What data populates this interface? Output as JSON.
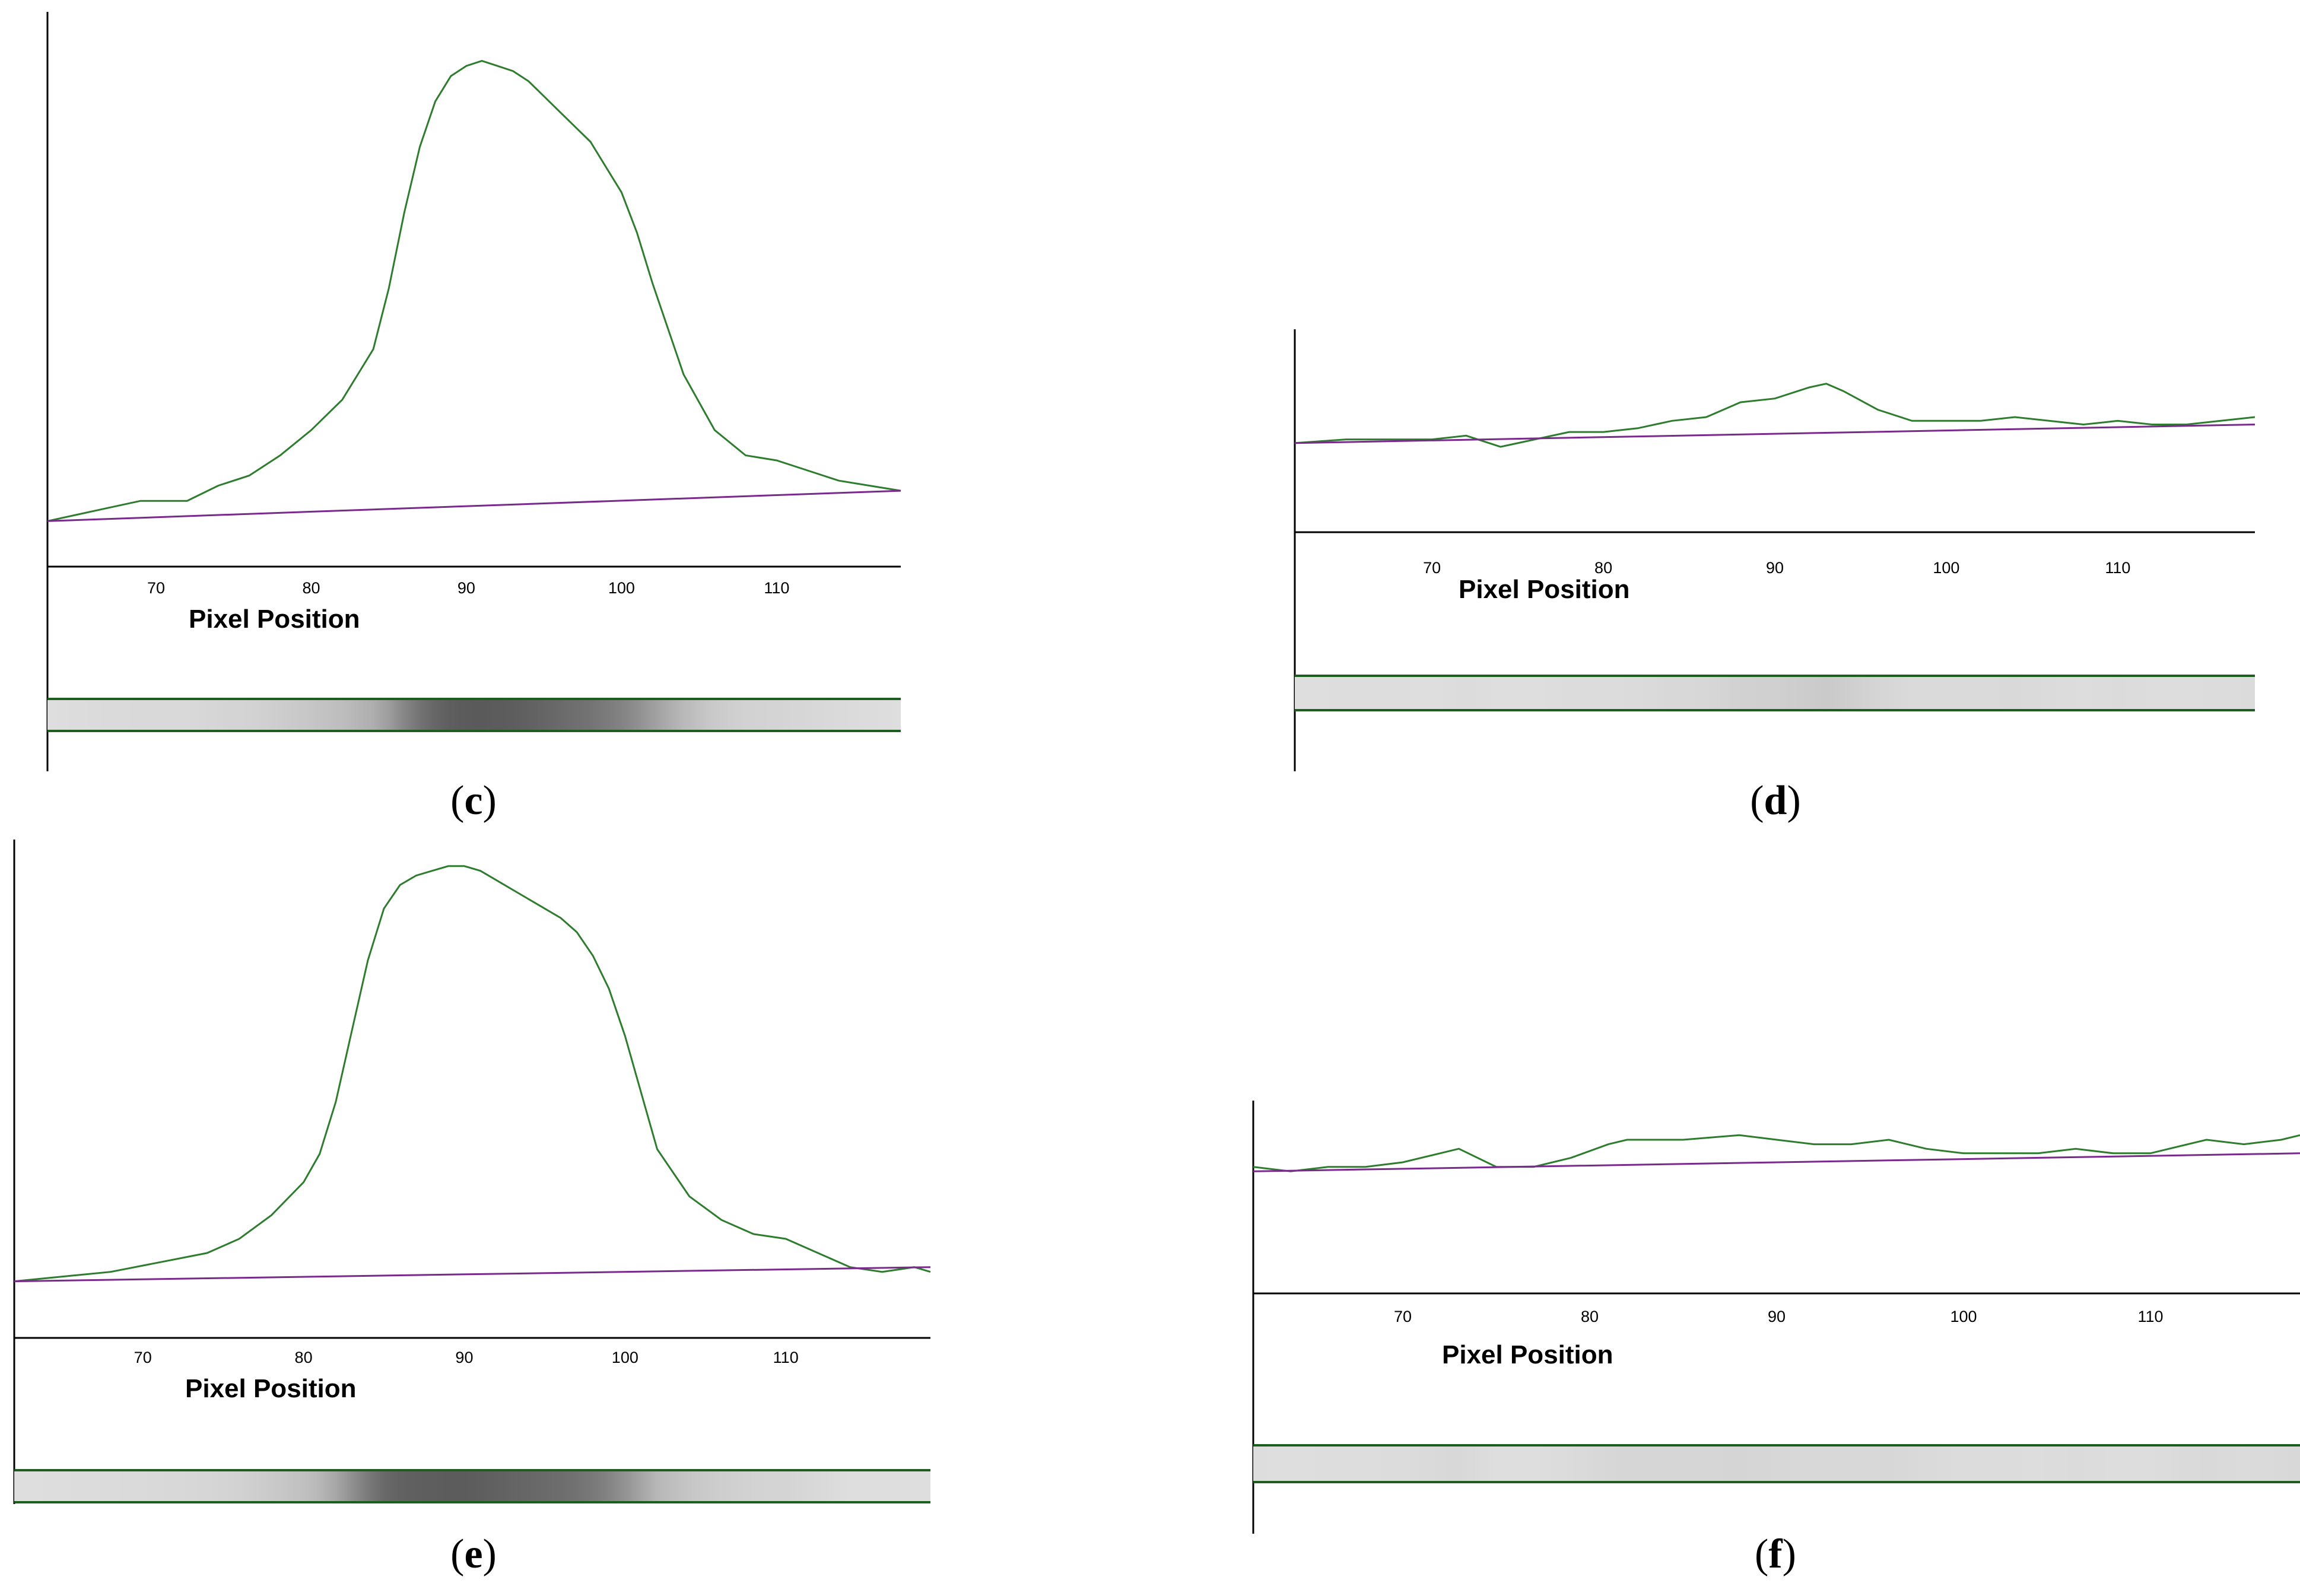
{
  "chart_data": [
    {
      "type": "line",
      "panel_label": "c",
      "xlabel": "Pixel Position",
      "xlim": [
        63,
        118
      ],
      "xticks": [
        70,
        80,
        90,
        100,
        110
      ],
      "ylim": [
        0,
        1.05
      ],
      "peak_visible": true,
      "colors": {
        "profile": "#2e7d2e",
        "baseline": "#7a2a8c",
        "strip_border": "#1f5c1f"
      },
      "series": [
        {
          "role": "profile",
          "x": [
            63,
            66,
            69,
            72,
            74,
            76,
            78,
            80,
            82,
            84,
            85,
            86,
            87,
            88,
            89,
            90,
            91,
            92,
            93,
            94,
            95,
            96,
            97,
            98,
            99,
            100,
            101,
            102,
            104,
            106,
            108,
            110,
            112,
            114,
            116,
            118
          ],
          "y": [
            0.09,
            0.11,
            0.13,
            0.13,
            0.16,
            0.18,
            0.22,
            0.27,
            0.33,
            0.43,
            0.55,
            0.7,
            0.83,
            0.92,
            0.97,
            0.99,
            1.0,
            0.99,
            0.98,
            0.96,
            0.93,
            0.9,
            0.87,
            0.84,
            0.79,
            0.74,
            0.66,
            0.56,
            0.38,
            0.27,
            0.22,
            0.21,
            0.19,
            0.17,
            0.16,
            0.15
          ]
        },
        {
          "role": "baseline",
          "x": [
            63,
            118
          ],
          "y": [
            0.09,
            0.15
          ]
        }
      ]
    },
    {
      "type": "line",
      "panel_label": "d",
      "xlabel": "Pixel Position",
      "xlim": [
        62,
        118
      ],
      "xticks": [
        70,
        80,
        90,
        100,
        110
      ],
      "ylim": [
        0,
        1.05
      ],
      "peak_visible": false,
      "colors": {
        "profile": "#2e7d2e",
        "baseline": "#7a2a8c",
        "strip_border": "#1f5c1f"
      },
      "series": [
        {
          "role": "profile",
          "x": [
            62,
            65,
            68,
            70,
            72,
            74,
            76,
            78,
            80,
            82,
            84,
            86,
            88,
            90,
            92,
            93,
            94,
            96,
            98,
            100,
            102,
            104,
            106,
            108,
            110,
            112,
            114,
            116,
            118
          ],
          "y": [
            0.24,
            0.25,
            0.25,
            0.25,
            0.26,
            0.23,
            0.25,
            0.27,
            0.27,
            0.28,
            0.3,
            0.31,
            0.35,
            0.36,
            0.39,
            0.4,
            0.38,
            0.33,
            0.3,
            0.3,
            0.3,
            0.31,
            0.3,
            0.29,
            0.3,
            0.29,
            0.29,
            0.3,
            0.31
          ]
        },
        {
          "role": "baseline",
          "x": [
            62,
            118
          ],
          "y": [
            0.24,
            0.29
          ]
        }
      ]
    },
    {
      "type": "line",
      "panel_label": "e",
      "xlabel": "Pixel Position",
      "xlim": [
        62,
        119
      ],
      "xticks": [
        70,
        80,
        90,
        100,
        110
      ],
      "ylim": [
        0,
        1.05
      ],
      "peak_visible": true,
      "colors": {
        "profile": "#2e7d2e",
        "baseline": "#7a2a8c",
        "strip_border": "#1f5c1f"
      },
      "series": [
        {
          "role": "profile",
          "x": [
            62,
            65,
            68,
            71,
            74,
            76,
            78,
            80,
            81,
            82,
            83,
            84,
            85,
            86,
            87,
            88,
            89,
            90,
            91,
            92,
            93,
            94,
            95,
            96,
            97,
            98,
            99,
            100,
            101,
            102,
            104,
            106,
            108,
            110,
            112,
            114,
            116,
            118,
            119
          ],
          "y": [
            0.12,
            0.13,
            0.14,
            0.16,
            0.18,
            0.21,
            0.26,
            0.33,
            0.39,
            0.5,
            0.65,
            0.8,
            0.91,
            0.96,
            0.98,
            0.99,
            1.0,
            1.0,
            0.99,
            0.97,
            0.95,
            0.93,
            0.91,
            0.89,
            0.86,
            0.81,
            0.74,
            0.64,
            0.52,
            0.4,
            0.3,
            0.25,
            0.22,
            0.21,
            0.18,
            0.15,
            0.14,
            0.15,
            0.14
          ]
        },
        {
          "role": "baseline",
          "x": [
            62,
            119
          ],
          "y": [
            0.12,
            0.15
          ]
        }
      ]
    },
    {
      "type": "line",
      "panel_label": "f",
      "xlabel": "Pixel Position",
      "xlim": [
        62,
        118
      ],
      "xticks": [
        70,
        80,
        90,
        100,
        110
      ],
      "ylim": [
        0,
        1.05
      ],
      "peak_visible": false,
      "colors": {
        "profile": "#2e7d2e",
        "baseline": "#7a2a8c",
        "strip_border": "#1f5c1f"
      },
      "series": [
        {
          "role": "profile",
          "x": [
            62,
            64,
            66,
            68,
            70,
            72,
            73,
            75,
            77,
            79,
            81,
            82,
            85,
            88,
            90,
            92,
            94,
            96,
            98,
            100,
            102,
            104,
            106,
            108,
            110,
            112,
            113,
            115,
            117,
            118
          ],
          "y": [
            0.28,
            0.27,
            0.28,
            0.28,
            0.29,
            0.31,
            0.32,
            0.28,
            0.28,
            0.3,
            0.33,
            0.34,
            0.34,
            0.35,
            0.34,
            0.33,
            0.33,
            0.34,
            0.32,
            0.31,
            0.31,
            0.31,
            0.32,
            0.31,
            0.31,
            0.33,
            0.34,
            0.33,
            0.34,
            0.35
          ]
        },
        {
          "role": "baseline",
          "x": [
            62,
            118
          ],
          "y": [
            0.27,
            0.31
          ]
        }
      ]
    }
  ]
}
